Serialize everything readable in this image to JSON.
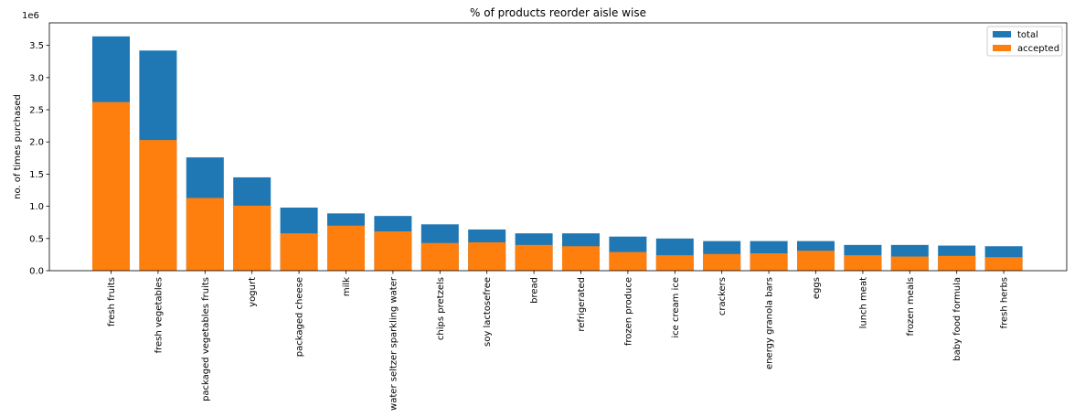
{
  "chart_data": {
    "type": "bar",
    "title": "% of products reorder aisle wise",
    "xlabel": "",
    "ylabel": "no. of times purchased",
    "y_scale_label": "1e6",
    "ylim": [
      0,
      3.85
    ],
    "yticks": [
      0.0,
      0.5,
      1.0,
      1.5,
      2.0,
      2.5,
      3.0,
      3.5
    ],
    "ytick_labels": [
      "0.0",
      "0.5",
      "1.0",
      "1.5",
      "2.0",
      "2.5",
      "3.0",
      "3.5"
    ],
    "grid": false,
    "legend_position": "top-right",
    "categories": [
      "fresh fruits",
      "fresh vegetables",
      "packaged vegetables fruits",
      "yogurt",
      "packaged cheese",
      "milk",
      "water seltzer sparkling water",
      "chips pretzels",
      "soy lactosefree",
      "bread",
      "refrigerated",
      "frozen produce",
      "ice cream ice",
      "crackers",
      "energy granola bars",
      "eggs",
      "lunch meat",
      "frozen meals",
      "baby food formula",
      "fresh herbs"
    ],
    "series": [
      {
        "name": "total",
        "color": "#1f77b4",
        "values": [
          3.64,
          3.42,
          1.76,
          1.45,
          0.98,
          0.89,
          0.85,
          0.72,
          0.64,
          0.58,
          0.58,
          0.53,
          0.5,
          0.46,
          0.46,
          0.46,
          0.4,
          0.4,
          0.39,
          0.38
        ]
      },
      {
        "name": "accepted",
        "color": "#ff7f0e",
        "values": [
          2.62,
          2.03,
          1.13,
          1.01,
          0.58,
          0.7,
          0.61,
          0.43,
          0.44,
          0.4,
          0.38,
          0.29,
          0.24,
          0.26,
          0.27,
          0.31,
          0.24,
          0.22,
          0.23,
          0.21
        ]
      }
    ]
  }
}
